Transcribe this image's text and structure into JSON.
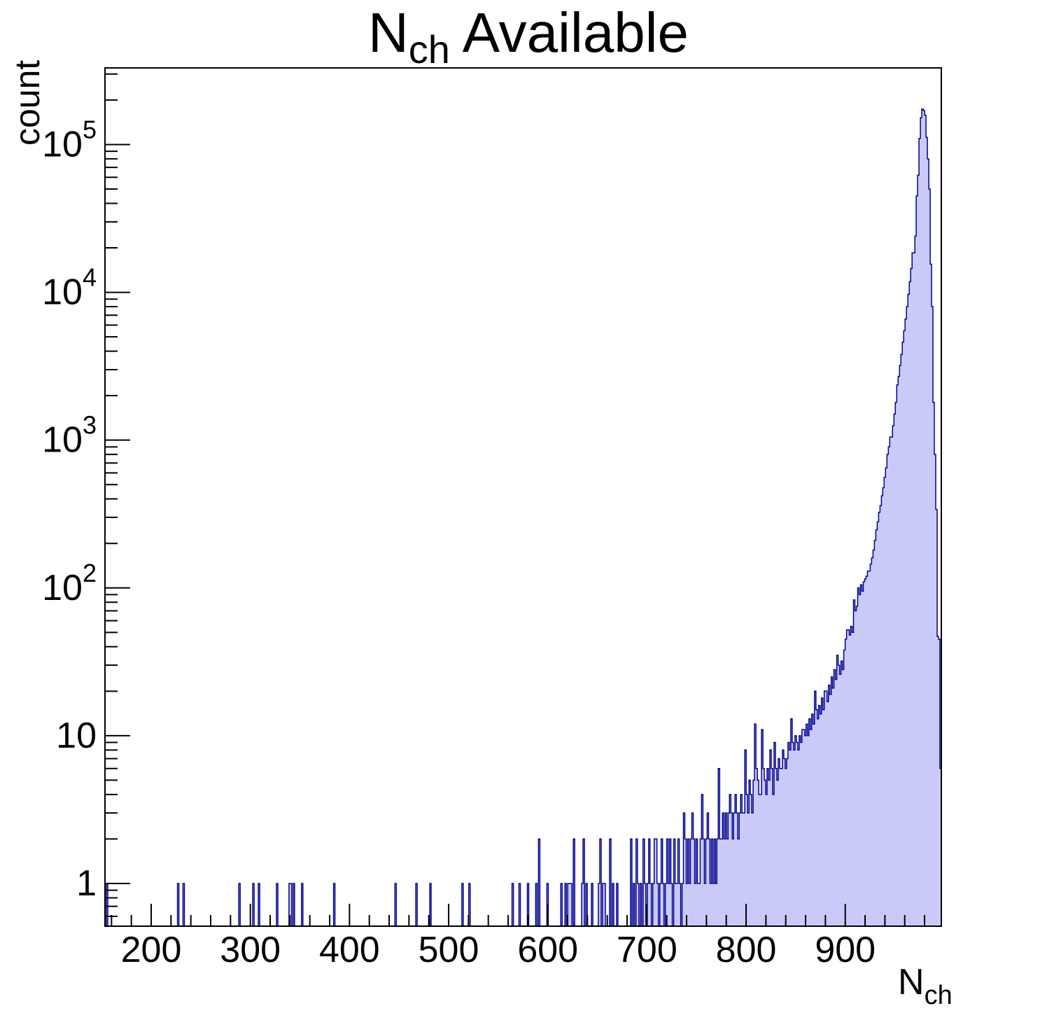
{
  "title": {
    "n": "N",
    "sub": "ch",
    "rest": " Available"
  },
  "y_axis": {
    "label": "count",
    "scale": "log",
    "major_ticks": [
      {
        "v": 1,
        "base": "1",
        "exp": ""
      },
      {
        "v": 10,
        "base": "10",
        "exp": ""
      },
      {
        "v": 100,
        "base": "10",
        "exp": "2"
      },
      {
        "v": 1000,
        "base": "10",
        "exp": "3"
      },
      {
        "v": 10000,
        "base": "10",
        "exp": "4"
      },
      {
        "v": 100000,
        "base": "10",
        "exp": "5"
      }
    ]
  },
  "x_axis": {
    "label_base": "N",
    "label_sub": "ch",
    "major_ticks": [
      200,
      300,
      400,
      500,
      600,
      700,
      800,
      900
    ],
    "minor_step": 20
  },
  "chart_data": {
    "type": "bar",
    "subtype": "step-histogram",
    "title": "N_ch Available",
    "xlabel": "N_ch",
    "ylabel": "count",
    "grid": false,
    "legend": "none",
    "xlim": [
      153.4,
      996.9
    ],
    "ylim": [
      0.514,
      330000
    ],
    "nbins": 600,
    "colors": {
      "fill": "#cacaf8",
      "line": "#000090",
      "axis": "#000000",
      "background": "#ffffff"
    },
    "peak": {
      "x": 978,
      "count": 174000
    },
    "sparse_bins": [
      [
        155,
        1
      ],
      [
        227.5,
        1
      ],
      [
        233,
        1
      ],
      [
        289,
        1
      ],
      [
        303,
        1
      ],
      [
        309,
        1
      ],
      [
        327.5,
        1
      ],
      [
        339,
        1
      ],
      [
        341.5,
        1
      ],
      [
        343.5,
        1
      ],
      [
        353,
        1
      ],
      [
        385,
        1
      ],
      [
        446,
        1
      ],
      [
        467.5,
        1
      ],
      [
        481,
        1
      ],
      [
        514,
        1
      ],
      [
        521,
        1
      ],
      [
        564.5,
        1
      ],
      [
        571.5,
        1
      ],
      [
        580.5,
        1
      ],
      [
        589,
        1
      ],
      [
        591,
        2
      ],
      [
        600,
        1
      ],
      [
        614,
        1
      ],
      [
        618,
        1
      ],
      [
        620.5,
        1
      ],
      [
        622,
        1
      ],
      [
        624,
        1
      ],
      [
        626,
        2
      ],
      [
        634.5,
        1
      ],
      [
        636,
        2
      ],
      [
        639,
        1
      ],
      [
        644.5,
        1
      ],
      [
        651.5,
        1
      ],
      [
        653,
        2
      ],
      [
        656.5,
        1
      ],
      [
        658,
        1
      ],
      [
        663,
        2
      ],
      [
        666.5,
        1
      ],
      [
        670,
        1
      ]
    ],
    "dense_profile": [
      [
        684,
        2
      ],
      [
        685.5,
        0
      ],
      [
        686.5,
        1
      ],
      [
        688,
        0
      ],
      [
        689,
        2
      ],
      [
        690.5,
        1
      ],
      [
        692,
        0
      ],
      [
        693.5,
        1
      ],
      [
        695,
        0
      ],
      [
        696,
        2
      ],
      [
        697.5,
        1
      ],
      [
        699,
        0
      ],
      [
        700.5,
        1
      ],
      [
        702,
        2
      ],
      [
        703.5,
        1
      ],
      [
        705,
        0
      ],
      [
        706.5,
        1
      ],
      [
        708,
        2
      ],
      [
        709.5,
        1
      ],
      [
        711,
        0
      ],
      [
        712.5,
        1
      ],
      [
        714,
        2
      ],
      [
        715.5,
        1
      ],
      [
        717,
        0
      ],
      [
        718.5,
        1
      ],
      [
        720,
        2
      ],
      [
        721.5,
        1
      ],
      [
        723,
        2
      ],
      [
        724.5,
        1
      ],
      [
        726,
        0
      ],
      [
        727.5,
        2
      ],
      [
        729,
        1
      ],
      [
        730.5,
        2
      ],
      [
        732,
        1
      ],
      [
        733.5,
        0
      ],
      [
        735,
        1
      ],
      [
        736.5,
        3
      ],
      [
        738,
        2
      ],
      [
        739.5,
        1
      ],
      [
        741,
        2
      ],
      [
        742.5,
        1
      ],
      [
        744,
        2
      ],
      [
        745.5,
        3
      ],
      [
        747,
        2
      ],
      [
        748.5,
        1
      ],
      [
        750,
        2
      ],
      [
        751.5,
        1
      ],
      [
        753,
        2
      ],
      [
        754.5,
        4
      ],
      [
        756,
        2
      ],
      [
        757.5,
        1
      ],
      [
        759,
        2
      ],
      [
        760.5,
        3
      ],
      [
        762,
        2
      ],
      [
        763.5,
        1
      ],
      [
        765,
        2
      ],
      [
        766.5,
        1
      ],
      [
        768,
        2
      ],
      [
        769.5,
        1
      ],
      [
        771,
        2
      ],
      [
        772.5,
        6
      ],
      [
        774,
        2
      ],
      [
        775.5,
        3
      ],
      [
        777,
        2
      ],
      [
        778.5,
        3
      ],
      [
        780,
        2
      ],
      [
        781.5,
        3
      ],
      [
        783,
        4
      ],
      [
        784.5,
        3
      ],
      [
        786,
        2
      ],
      [
        787.5,
        3
      ],
      [
        789,
        4
      ],
      [
        790.5,
        3
      ],
      [
        792,
        2
      ],
      [
        793.5,
        3
      ],
      [
        795,
        4
      ],
      [
        796.5,
        3
      ],
      [
        798,
        8
      ],
      [
        799.5,
        4
      ],
      [
        801,
        3
      ],
      [
        802.5,
        5
      ],
      [
        804,
        4
      ],
      [
        805.5,
        3
      ],
      [
        807,
        5
      ],
      [
        808.5,
        12
      ],
      [
        810,
        6
      ],
      [
        811.5,
        5
      ],
      [
        813,
        4
      ],
      [
        815,
        11
      ],
      [
        816.5,
        6
      ],
      [
        818,
        5
      ],
      [
        819.5,
        4
      ],
      [
        821,
        6
      ],
      [
        822.5,
        5
      ],
      [
        824,
        8
      ],
      [
        825.5,
        6
      ],
      [
        827,
        4
      ],
      [
        828.5,
        9
      ],
      [
        830,
        6
      ],
      [
        831.5,
        5
      ],
      [
        833,
        7
      ],
      [
        834.5,
        6
      ],
      [
        836,
        8
      ],
      [
        837.5,
        7
      ],
      [
        839,
        6
      ],
      [
        840.5,
        7
      ],
      [
        842,
        9
      ],
      [
        843.5,
        8
      ],
      [
        845,
        13
      ],
      [
        846.5,
        9
      ],
      [
        848,
        8
      ],
      [
        849.5,
        10
      ],
      [
        851,
        9
      ],
      [
        852.5,
        8
      ],
      [
        854,
        10
      ],
      [
        855.5,
        9
      ],
      [
        857,
        11
      ],
      [
        858.5,
        10
      ],
      [
        860,
        12
      ],
      [
        861.5,
        10
      ],
      [
        863,
        13
      ],
      [
        864.5,
        11
      ],
      [
        866,
        14
      ],
      [
        867.5,
        12
      ],
      [
        869,
        20
      ],
      [
        870.5,
        15
      ],
      [
        872,
        13
      ],
      [
        873.5,
        16
      ],
      [
        875,
        14
      ],
      [
        876.5,
        18
      ],
      [
        878,
        15
      ],
      [
        879.5,
        20
      ],
      [
        881,
        17
      ],
      [
        882.5,
        22
      ],
      [
        884,
        19
      ],
      [
        885.5,
        25
      ],
      [
        887,
        21
      ],
      [
        888.5,
        28
      ],
      [
        890,
        24
      ],
      [
        891.5,
        35
      ],
      [
        893,
        30
      ],
      [
        894.5,
        26
      ],
      [
        896,
        32
      ],
      [
        897.5,
        28
      ],
      [
        899,
        38
      ],
      [
        900.5,
        45
      ],
      [
        902,
        52
      ],
      [
        903.5,
        48
      ],
      [
        905,
        55
      ],
      [
        906.5,
        50
      ],
      [
        908,
        83
      ],
      [
        909.5,
        70
      ],
      [
        911,
        75
      ],
      [
        912.5,
        100
      ],
      [
        914,
        90
      ],
      [
        915.5,
        105
      ],
      [
        917,
        95
      ],
      [
        918.5,
        110
      ],
      [
        920,
        115
      ],
      [
        921.5,
        120
      ],
      [
        923,
        130
      ],
      [
        924.5,
        145
      ],
      [
        926,
        160
      ],
      [
        927.5,
        180
      ],
      [
        929,
        210
      ],
      [
        930.5,
        247
      ],
      [
        932,
        280
      ],
      [
        933.5,
        325
      ],
      [
        935,
        360
      ],
      [
        936.5,
        420
      ],
      [
        938,
        476
      ],
      [
        939.5,
        560
      ],
      [
        941,
        650
      ],
      [
        942.5,
        800
      ],
      [
        944,
        900
      ],
      [
        945.5,
        1050
      ],
      [
        947,
        1250
      ],
      [
        948.5,
        1500
      ],
      [
        950,
        1800
      ],
      [
        951.5,
        2365
      ],
      [
        953,
        2700
      ],
      [
        954.5,
        3200
      ],
      [
        956,
        3800
      ],
      [
        957.5,
        4600
      ],
      [
        959,
        5500
      ],
      [
        960.5,
        6600
      ],
      [
        962,
        8000
      ],
      [
        963.5,
        9700
      ],
      [
        965,
        11800
      ],
      [
        966.5,
        14500
      ],
      [
        968,
        18500
      ],
      [
        969.5,
        24000
      ],
      [
        971,
        32000
      ],
      [
        972,
        45000
      ],
      [
        973,
        62000
      ],
      [
        974,
        85000
      ],
      [
        975,
        110000
      ],
      [
        976,
        152000
      ],
      [
        977,
        166000
      ],
      [
        977.8,
        174000
      ],
      [
        979,
        170000
      ],
      [
        980,
        158000
      ],
      [
        981,
        138000
      ],
      [
        982,
        112000
      ],
      [
        983,
        80000
      ],
      [
        984,
        50000
      ],
      [
        985,
        29000
      ],
      [
        986,
        15500
      ],
      [
        987,
        8000
      ],
      [
        988,
        3900
      ],
      [
        989,
        1800
      ],
      [
        990,
        800
      ],
      [
        991,
        340
      ],
      [
        992,
        140
      ],
      [
        993,
        47
      ],
      [
        994.5,
        45
      ],
      [
        995.9,
        6
      ]
    ]
  }
}
